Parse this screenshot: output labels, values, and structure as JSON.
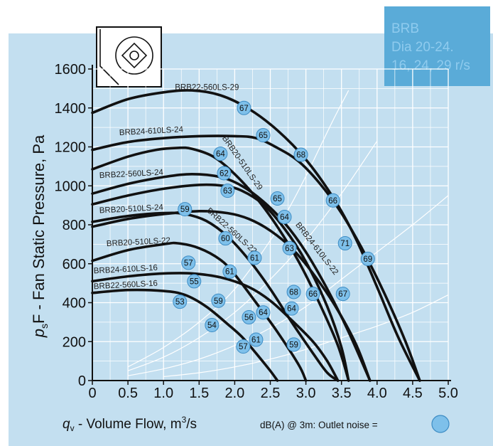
{
  "info_box": {
    "line1": "BRB",
    "line2": "Dia 20-24.",
    "line3": "16, 24, 29 r/s"
  },
  "colors": {
    "panel": "#c3dff0",
    "info_box": "#5aabd8",
    "info_text": "#8fcbee",
    "curve": "#111111",
    "noise_marker": "#7ec0ea"
  },
  "footer": {
    "noise_label": "dB(A) @ 3m:  Outlet noise  ="
  },
  "chart_data": {
    "type": "line",
    "title": "",
    "xlabel_parts": {
      "q": "q",
      "sub": "v",
      "text": " - Volume Flow, m",
      "sup": "3",
      "unit": "/s"
    },
    "ylabel_parts": {
      "p": "p",
      "sub": "s",
      "text": "F - Fan Static Pressure, Pa"
    },
    "xlim": [
      0,
      5.0
    ],
    "ylim": [
      0,
      1600
    ],
    "xticks": [
      "0",
      "0.5",
      "1.0",
      "1.5",
      "2.0",
      "2.5",
      "3.0",
      "3.5",
      "4.0",
      "4.5",
      "5.0"
    ],
    "xtick_values": [
      0,
      0.5,
      1.0,
      1.5,
      2.0,
      2.5,
      3.0,
      3.5,
      4.0,
      4.5,
      5.0
    ],
    "yticks": [
      "0",
      "200",
      "400",
      "600",
      "800",
      "1000",
      "1200",
      "1400",
      "1600"
    ],
    "ytick_values": [
      0,
      200,
      400,
      600,
      800,
      1000,
      1200,
      1400,
      1600
    ],
    "grid": true,
    "fan_curves": [
      {
        "name": "BRB22-560LS-29",
        "points": [
          [
            0,
            1375
          ],
          [
            0.5,
            1445
          ],
          [
            1.0,
            1480
          ],
          [
            1.4,
            1490
          ],
          [
            1.8,
            1465
          ],
          [
            2.2,
            1395
          ],
          [
            2.6,
            1285
          ],
          [
            3.0,
            1135
          ],
          [
            3.4,
            930
          ],
          [
            3.7,
            730
          ],
          [
            4.0,
            480
          ],
          [
            4.3,
            220
          ],
          [
            4.6,
            0
          ]
        ]
      },
      {
        "name": "BRB24-610LS-24",
        "points": [
          [
            0,
            1185
          ],
          [
            0.5,
            1225
          ],
          [
            1.0,
            1245
          ],
          [
            1.5,
            1255
          ],
          [
            2.0,
            1255
          ],
          [
            2.3,
            1245
          ],
          [
            2.6,
            1195
          ],
          [
            2.9,
            1125
          ],
          [
            3.2,
            1010
          ],
          [
            3.5,
            860
          ],
          [
            3.8,
            670
          ],
          [
            4.1,
            450
          ],
          [
            4.4,
            200
          ],
          [
            4.6,
            0
          ]
        ]
      },
      {
        "name": "BRB20-510LS-29",
        "points": [
          [
            0,
            1085
          ],
          [
            0.5,
            1150
          ],
          [
            0.9,
            1185
          ],
          [
            1.2,
            1195
          ],
          [
            1.4,
            1190
          ],
          [
            1.7,
            1150
          ],
          [
            2.0,
            1060
          ],
          [
            2.3,
            940
          ],
          [
            2.6,
            790
          ],
          [
            2.9,
            610
          ],
          [
            3.2,
            390
          ],
          [
            3.45,
            180
          ],
          [
            3.6,
            0
          ]
        ]
      },
      {
        "name": "BRB22-560LS-24",
        "points": [
          [
            0,
            960
          ],
          [
            0.5,
            1010
          ],
          [
            1.0,
            1045
          ],
          [
            1.4,
            1060
          ],
          [
            1.8,
            1045
          ],
          [
            2.1,
            1000
          ],
          [
            2.4,
            920
          ],
          [
            2.7,
            810
          ],
          [
            3.0,
            660
          ],
          [
            3.3,
            470
          ],
          [
            3.6,
            250
          ],
          [
            3.9,
            0
          ]
        ]
      },
      {
        "name": "BRB20-510LS-24",
        "points": [
          [
            0,
            905
          ],
          [
            0.5,
            950
          ],
          [
            1.0,
            985
          ],
          [
            1.5,
            1005
          ],
          [
            1.85,
            1000
          ],
          [
            2.1,
            975
          ],
          [
            2.4,
            905
          ],
          [
            2.7,
            780
          ],
          [
            3.0,
            610
          ],
          [
            3.3,
            380
          ],
          [
            3.5,
            170
          ],
          [
            3.6,
            0
          ]
        ]
      },
      {
        "name": "BRB24-610LS-22",
        "points": [
          [
            0,
            790
          ],
          [
            0.5,
            830
          ],
          [
            1.0,
            855
          ],
          [
            1.5,
            870
          ],
          [
            1.9,
            860
          ],
          [
            2.2,
            830
          ],
          [
            2.5,
            770
          ],
          [
            2.8,
            680
          ],
          [
            3.1,
            550
          ],
          [
            3.4,
            390
          ],
          [
            3.7,
            190
          ],
          [
            3.9,
            0
          ]
        ]
      },
      {
        "name": "BRB22-560LS-22",
        "points": [
          [
            0,
            815
          ],
          [
            0.5,
            845
          ],
          [
            1.0,
            860
          ],
          [
            1.3,
            855
          ],
          [
            1.6,
            820
          ],
          [
            1.9,
            740
          ],
          [
            2.2,
            620
          ],
          [
            2.5,
            470
          ],
          [
            2.8,
            300
          ],
          [
            3.1,
            140
          ],
          [
            3.3,
            40
          ],
          [
            3.45,
            0
          ]
        ]
      },
      {
        "name": "BRB20-510LS-22",
        "points": [
          [
            0,
            615
          ],
          [
            0.5,
            670
          ],
          [
            1.0,
            700
          ],
          [
            1.2,
            705
          ],
          [
            1.5,
            680
          ],
          [
            1.8,
            620
          ],
          [
            2.0,
            545
          ],
          [
            2.3,
            400
          ],
          [
            2.6,
            250
          ],
          [
            2.9,
            80
          ],
          [
            3.0,
            0
          ]
        ]
      },
      {
        "name": "BRB24-610LS-16",
        "points": [
          [
            0,
            510
          ],
          [
            0.5,
            535
          ],
          [
            1.0,
            550
          ],
          [
            1.4,
            550
          ],
          [
            1.8,
            530
          ],
          [
            2.2,
            480
          ],
          [
            2.5,
            410
          ],
          [
            2.8,
            310
          ],
          [
            3.1,
            200
          ],
          [
            3.3,
            100
          ],
          [
            3.45,
            0
          ]
        ]
      },
      {
        "name": "BRB22-560LS-16",
        "points": [
          [
            0,
            450
          ],
          [
            0.5,
            465
          ],
          [
            1.0,
            460
          ],
          [
            1.3,
            440
          ],
          [
            1.6,
            380
          ],
          [
            1.9,
            290
          ],
          [
            2.1,
            225
          ],
          [
            2.3,
            140
          ],
          [
            2.5,
            50
          ],
          [
            2.6,
            0
          ]
        ]
      }
    ],
    "system_lines": [
      {
        "points": [
          [
            0.5,
            70
          ],
          [
            1.0,
            170
          ],
          [
            1.5,
            300
          ],
          [
            2.0,
            470
          ],
          [
            2.5,
            720
          ],
          [
            2.8,
            910
          ],
          [
            3.0,
            1050
          ],
          [
            3.2,
            1200
          ],
          [
            3.4,
            1350
          ],
          [
            3.6,
            1490
          ]
        ]
      },
      {
        "points": [
          [
            0.5,
            50
          ],
          [
            1.0,
            120
          ],
          [
            1.5,
            220
          ],
          [
            2.0,
            350
          ],
          [
            2.5,
            520
          ],
          [
            3.0,
            720
          ],
          [
            3.5,
            960
          ],
          [
            4.0,
            1230
          ]
        ]
      },
      {
        "points": [
          [
            0.5,
            25
          ],
          [
            1.0,
            60
          ],
          [
            1.5,
            110
          ],
          [
            2.0,
            180
          ],
          [
            2.5,
            270
          ],
          [
            3.0,
            380
          ],
          [
            3.5,
            520
          ],
          [
            4.0,
            660
          ],
          [
            4.5,
            800
          ],
          [
            5.0,
            950
          ]
        ]
      },
      {
        "points": [
          [
            1.0,
            20
          ],
          [
            1.5,
            40
          ],
          [
            2.0,
            70
          ],
          [
            2.5,
            110
          ],
          [
            3.0,
            160
          ],
          [
            3.5,
            220
          ],
          [
            4.0,
            280
          ],
          [
            4.5,
            350
          ],
          [
            5.0,
            440
          ]
        ]
      }
    ],
    "curve_labels": [
      {
        "text": "BRB22-560LS-29",
        "x": 1.16,
        "y": 1492,
        "rot": 0
      },
      {
        "text": "BRB24-610LS-24",
        "x": 0.38,
        "y": 1260,
        "rot": -3
      },
      {
        "text": "BRB20-510LS-29",
        "x": 1.82,
        "y": 1245,
        "rot": 55
      },
      {
        "text": "BRB22-560LS-24",
        "x": 0.1,
        "y": 1040,
        "rot": -3
      },
      {
        "text": "BRB20-510LS-24",
        "x": 0.1,
        "y": 860,
        "rot": -3
      },
      {
        "text": "BRB22-560LS-22",
        "x": 1.6,
        "y": 870,
        "rot": 42
      },
      {
        "text": "BRB24-610LS-22",
        "x": 2.85,
        "y": 800,
        "rot": 52
      },
      {
        "text": "BRB20-510LS-22",
        "x": 0.2,
        "y": 690,
        "rot": -3
      },
      {
        "text": "BRB24-610LS-16",
        "x": 0.02,
        "y": 550,
        "rot": -3
      },
      {
        "text": "BRB22-560LS-16",
        "x": 0.02,
        "y": 470,
        "rot": -3
      }
    ],
    "noise_markers": [
      {
        "x": 2.13,
        "y": 1400,
        "value": "67"
      },
      {
        "x": 2.4,
        "y": 1260,
        "value": "65"
      },
      {
        "x": 2.93,
        "y": 1160,
        "value": "68"
      },
      {
        "x": 1.8,
        "y": 1165,
        "value": "64"
      },
      {
        "x": 3.38,
        "y": 925,
        "value": "66"
      },
      {
        "x": 1.85,
        "y": 1065,
        "value": "62"
      },
      {
        "x": 1.9,
        "y": 975,
        "value": "63"
      },
      {
        "x": 2.6,
        "y": 935,
        "value": "65"
      },
      {
        "x": 2.7,
        "y": 840,
        "value": "64"
      },
      {
        "x": 1.3,
        "y": 880,
        "value": "59"
      },
      {
        "x": 3.55,
        "y": 705,
        "value": "71"
      },
      {
        "x": 3.87,
        "y": 625,
        "value": "69"
      },
      {
        "x": 1.87,
        "y": 730,
        "value": "60"
      },
      {
        "x": 2.77,
        "y": 680,
        "value": "63"
      },
      {
        "x": 2.28,
        "y": 630,
        "value": "61"
      },
      {
        "x": 1.35,
        "y": 605,
        "value": "57"
      },
      {
        "x": 1.93,
        "y": 560,
        "value": "61"
      },
      {
        "x": 1.43,
        "y": 510,
        "value": "55"
      },
      {
        "x": 2.83,
        "y": 455,
        "value": "68"
      },
      {
        "x": 3.1,
        "y": 445,
        "value": "66"
      },
      {
        "x": 3.52,
        "y": 445,
        "value": "67"
      },
      {
        "x": 1.77,
        "y": 410,
        "value": "59"
      },
      {
        "x": 1.23,
        "y": 405,
        "value": "53"
      },
      {
        "x": 2.8,
        "y": 370,
        "value": "64"
      },
      {
        "x": 2.4,
        "y": 350,
        "value": "64"
      },
      {
        "x": 2.2,
        "y": 325,
        "value": "56"
      },
      {
        "x": 1.68,
        "y": 285,
        "value": "54"
      },
      {
        "x": 2.3,
        "y": 210,
        "value": "61"
      },
      {
        "x": 2.12,
        "y": 175,
        "value": "57"
      },
      {
        "x": 2.83,
        "y": 185,
        "value": "59"
      }
    ]
  }
}
